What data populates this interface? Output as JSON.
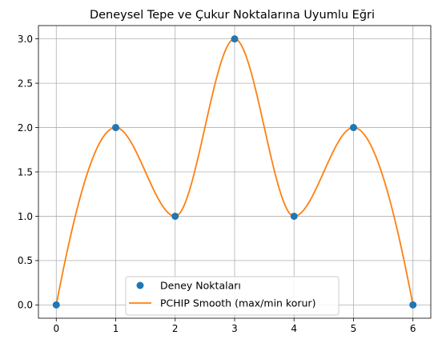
{
  "chart_data": {
    "type": "line",
    "title": "Deneysel Tepe ve Çukur Noktalarına Uyumlu Eğri",
    "xlabel": "",
    "ylabel": "",
    "xlim": [
      -0.3,
      6.3
    ],
    "ylim": [
      -0.15,
      3.15
    ],
    "xticks": [
      0,
      1,
      2,
      3,
      4,
      5,
      6
    ],
    "xtick_labels": [
      "0",
      "1",
      "2",
      "3",
      "4",
      "5",
      "6"
    ],
    "yticks": [
      0.0,
      0.5,
      1.0,
      1.5,
      2.0,
      2.5,
      3.0
    ],
    "ytick_labels": [
      "0.0",
      "0.5",
      "1.0",
      "1.5",
      "2.0",
      "2.5",
      "3.0"
    ],
    "grid": true,
    "legend_position": "lower-center",
    "series": [
      {
        "name": "Deney Noktaları",
        "kind": "scatter",
        "color": "#1f77b4",
        "x": [
          0,
          1,
          2,
          3,
          4,
          5,
          6
        ],
        "y": [
          0,
          2,
          1,
          3,
          1,
          2,
          0
        ]
      },
      {
        "name": "PCHIP Smooth (max/min korur)",
        "kind": "line",
        "color": "#ff7f0e",
        "x": [
          0,
          1,
          2,
          3,
          4,
          5,
          6
        ],
        "y": [
          0,
          2,
          1,
          3,
          1,
          2,
          0
        ]
      }
    ]
  }
}
